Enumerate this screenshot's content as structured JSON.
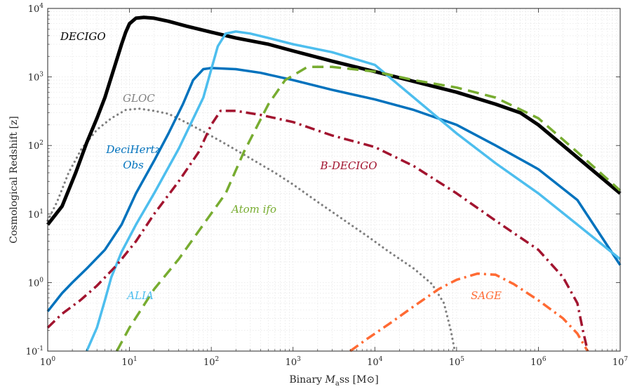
{
  "chart_data": {
    "type": "line",
    "xlabel": "Binary Mass [M⊙]",
    "ylabel": "Cosmological Redshift  [z]",
    "xscale": "log",
    "yscale": "log",
    "xlim": [
      1,
      10000000
    ],
    "ylim": [
      0.1,
      10000
    ],
    "grid": true,
    "x_ticks": [
      "10^0",
      "10^1",
      "10^2",
      "10^3",
      "10^4",
      "10^5",
      "10^6",
      "10^7"
    ],
    "y_ticks": [
      "10^-1",
      "10^0",
      "10^1",
      "10^2",
      "10^3",
      "10^4"
    ],
    "series": [
      {
        "name": "GLOC",
        "color": "#808080",
        "dash": "dot",
        "width": 3.2,
        "points": [
          [
            1,
            8
          ],
          [
            1.3,
            15
          ],
          [
            1.8,
            40
          ],
          [
            2.6,
            90
          ],
          [
            4,
            170
          ],
          [
            6,
            250
          ],
          [
            9,
            330
          ],
          [
            13,
            345
          ],
          [
            20,
            320
          ],
          [
            30,
            290
          ],
          [
            50,
            215
          ],
          [
            80,
            160
          ],
          [
            150,
            105
          ],
          [
            300,
            65
          ],
          [
            600,
            40
          ],
          [
            1000,
            27
          ],
          [
            2000,
            15
          ],
          [
            4000,
            8.5
          ],
          [
            8000,
            4.8
          ],
          [
            15000,
            2.8
          ],
          [
            30000,
            1.6
          ],
          [
            50000,
            0.95
          ],
          [
            70000,
            0.5
          ],
          [
            85000,
            0.2
          ],
          [
            95000,
            0.1
          ]
        ]
      },
      {
        "name": "DECIGO",
        "color": "#000000",
        "dash": "solid",
        "width": 5,
        "points": [
          [
            1,
            7
          ],
          [
            1.5,
            13
          ],
          [
            2.2,
            40
          ],
          [
            3,
            110
          ],
          [
            4,
            250
          ],
          [
            5,
            500
          ],
          [
            6,
            1000
          ],
          [
            7,
            1800
          ],
          [
            8,
            3000
          ],
          [
            9,
            4500
          ],
          [
            10,
            6000
          ],
          [
            12,
            7200
          ],
          [
            15,
            7400
          ],
          [
            20,
            7200
          ],
          [
            30,
            6500
          ],
          [
            50,
            5500
          ],
          [
            100,
            4500
          ],
          [
            200,
            3700
          ],
          [
            500,
            3000
          ],
          [
            1000,
            2400
          ],
          [
            3000,
            1700
          ],
          [
            10000,
            1200
          ],
          [
            30000,
            860
          ],
          [
            100000,
            600
          ],
          [
            300000,
            400
          ],
          [
            600000,
            300
          ],
          [
            1000000,
            200
          ],
          [
            2000000,
            100
          ],
          [
            4000000,
            50
          ],
          [
            10000000,
            20
          ]
        ]
      },
      {
        "name": "DeciHertz Obs",
        "color": "#0072BD",
        "dash": "solid",
        "width": 3.5,
        "points": [
          [
            1,
            0.38
          ],
          [
            1.5,
            0.7
          ],
          [
            2,
            1.0
          ],
          [
            3,
            1.6
          ],
          [
            5,
            3.0
          ],
          [
            8,
            7
          ],
          [
            12,
            20
          ],
          [
            20,
            60
          ],
          [
            30,
            150
          ],
          [
            45,
            400
          ],
          [
            60,
            900
          ],
          [
            80,
            1300
          ],
          [
            100,
            1350
          ],
          [
            200,
            1300
          ],
          [
            400,
            1150
          ],
          [
            1000,
            900
          ],
          [
            3000,
            650
          ],
          [
            10000,
            470
          ],
          [
            30000,
            330
          ],
          [
            100000,
            200
          ],
          [
            300000,
            100
          ],
          [
            1000000,
            45
          ],
          [
            3000000,
            16
          ],
          [
            10000000,
            1.8
          ]
        ]
      },
      {
        "name": "ALIA",
        "color": "#4DBEEE",
        "dash": "solid",
        "width": 3.5,
        "points": [
          [
            3,
            0.1
          ],
          [
            4,
            0.22
          ],
          [
            5,
            0.55
          ],
          [
            6,
            1.2
          ],
          [
            8,
            2.8
          ],
          [
            12,
            7
          ],
          [
            20,
            20
          ],
          [
            40,
            90
          ],
          [
            80,
            500
          ],
          [
            120,
            2800
          ],
          [
            150,
            4300
          ],
          [
            200,
            4600
          ],
          [
            300,
            4300
          ],
          [
            500,
            3700
          ],
          [
            1000,
            3000
          ],
          [
            3000,
            2300
          ],
          [
            10000,
            1500
          ],
          [
            15000,
            1000
          ],
          [
            30000,
            500
          ],
          [
            100000,
            150
          ],
          [
            300000,
            55
          ],
          [
            1000000,
            20
          ],
          [
            3000000,
            7
          ],
          [
            10000000,
            2.2
          ]
        ]
      },
      {
        "name": "B-DECIGO",
        "color": "#A2142F",
        "dash": "dashdot",
        "width": 3.5,
        "points": [
          [
            1,
            0.22
          ],
          [
            1.5,
            0.35
          ],
          [
            2.5,
            0.55
          ],
          [
            4,
            0.9
          ],
          [
            7,
            1.8
          ],
          [
            12,
            4
          ],
          [
            20,
            10
          ],
          [
            40,
            30
          ],
          [
            70,
            80
          ],
          [
            100,
            200
          ],
          [
            130,
            320
          ],
          [
            200,
            320
          ],
          [
            400,
            280
          ],
          [
            1000,
            220
          ],
          [
            3000,
            140
          ],
          [
            10000,
            95
          ],
          [
            30000,
            50
          ],
          [
            100000,
            20
          ],
          [
            300000,
            8
          ],
          [
            1000000,
            3
          ],
          [
            2000000,
            1.2
          ],
          [
            3000000,
            0.5
          ],
          [
            3500000,
            0.2
          ],
          [
            4000000,
            0.1
          ]
        ]
      },
      {
        "name": "Atom ifo",
        "color": "#77AC30",
        "dash": "dashed",
        "width": 3.5,
        "points": [
          [
            7,
            0.1
          ],
          [
            10,
            0.22
          ],
          [
            20,
            0.8
          ],
          [
            40,
            2.2
          ],
          [
            80,
            7
          ],
          [
            150,
            20
          ],
          [
            250,
            80
          ],
          [
            500,
            400
          ],
          [
            800,
            900
          ],
          [
            1500,
            1400
          ],
          [
            3000,
            1400
          ],
          [
            10000,
            1200
          ],
          [
            30000,
            900
          ],
          [
            100000,
            700
          ],
          [
            300000,
            500
          ],
          [
            1000000,
            250
          ],
          [
            3000000,
            80
          ],
          [
            10000000,
            22
          ]
        ]
      },
      {
        "name": "SAGE",
        "color": "#FF6A33",
        "dash": "dashdot",
        "width": 3.5,
        "points": [
          [
            5000,
            0.1
          ],
          [
            8000,
            0.15
          ],
          [
            15000,
            0.25
          ],
          [
            30000,
            0.45
          ],
          [
            60000,
            0.8
          ],
          [
            100000,
            1.1
          ],
          [
            180000,
            1.35
          ],
          [
            300000,
            1.3
          ],
          [
            500000,
            0.95
          ],
          [
            1000000,
            0.55
          ],
          [
            2000000,
            0.3
          ],
          [
            3000000,
            0.18
          ],
          [
            4000000,
            0.1
          ]
        ]
      }
    ],
    "series_labels": [
      {
        "name": "DECIGO",
        "color": "#000000"
      },
      {
        "name": "GLOC",
        "color": "#808080"
      },
      {
        "name": "DeciHertz",
        "color": "#0072BD"
      },
      {
        "name": "Obs",
        "color": "#0072BD"
      },
      {
        "name": "B-DECIGO",
        "color": "#A2142F"
      },
      {
        "name": "Atom ifo",
        "color": "#77AC30"
      },
      {
        "name": "ALIA",
        "color": "#4DBEEE"
      },
      {
        "name": "SAGE",
        "color": "#FF6A33"
      }
    ]
  }
}
